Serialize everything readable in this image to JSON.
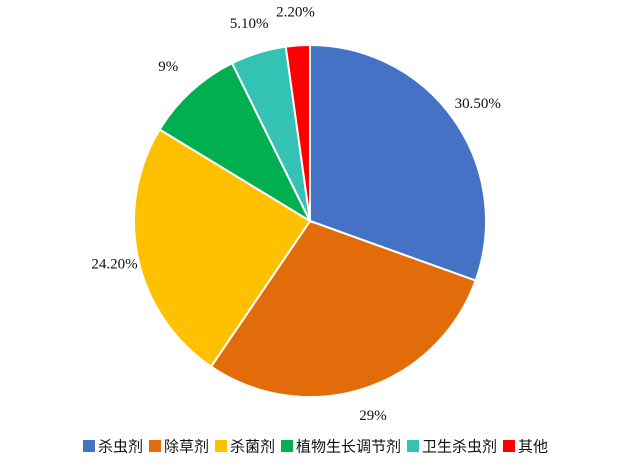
{
  "chart_data": {
    "type": "pie",
    "title": "",
    "start_angle": "12 o'clock, clockwise",
    "slices": [
      {
        "label": "杀虫剂",
        "value": 30.5,
        "display": "30.50%",
        "color": "#4472C4"
      },
      {
        "label": "除草剂",
        "value": 29.0,
        "display": "29%",
        "color": "#E36C0A"
      },
      {
        "label": "杀菌剂",
        "value": 24.2,
        "display": "24.20%",
        "color": "#FFC000"
      },
      {
        "label": "植物生长调节剂",
        "value": 9.0,
        "display": "9%",
        "color": "#00B050"
      },
      {
        "label": "卫生杀虫剂",
        "value": 5.1,
        "display": "5.10%",
        "color": "#33C2B4"
      },
      {
        "label": "其他",
        "value": 2.2,
        "display": "2.20%",
        "color": "#FF0000"
      }
    ],
    "legend": {
      "position": "bottom"
    },
    "data_labels": "outside"
  }
}
